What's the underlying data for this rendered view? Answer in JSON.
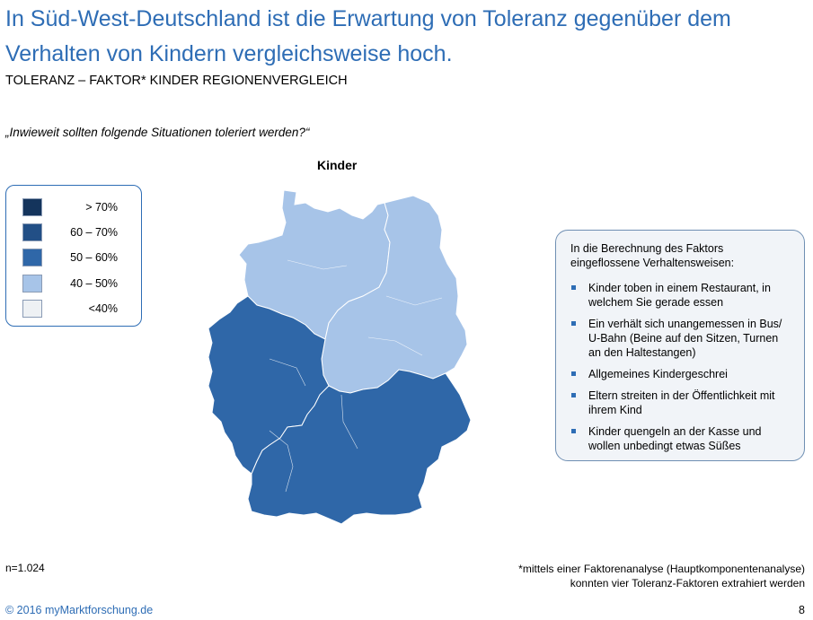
{
  "header": {
    "title": "In Süd-West-Deutschland ist die Erwartung von Toleranz gegenüber dem Verhalten von Kindern vergleichsweise hoch.",
    "subtitle": "TOLERANZ – FAKTOR* KINDER REGIONENVERGLEICH"
  },
  "question": "„Inwieweit sollten folgende Situationen toleriert werden?“",
  "map": {
    "title": "Kinder",
    "regions": [
      {
        "id": "north",
        "class": "40 – 50%",
        "color": "#a7c4e8"
      },
      {
        "id": "east",
        "class": "40 – 50%",
        "color": "#a7c4e8"
      },
      {
        "id": "west",
        "class": "50 – 60%",
        "color": "#2f67a8"
      },
      {
        "id": "south",
        "class": "50 – 60%",
        "color": "#2f67a8"
      }
    ]
  },
  "legend": {
    "items": [
      {
        "label": "> 70%",
        "color": "#14345c"
      },
      {
        "label": "60 – 70%",
        "color": "#224f86"
      },
      {
        "label": "50 – 60%",
        "color": "#2f67a8"
      },
      {
        "label": "40 – 50%",
        "color": "#a7c4e8"
      },
      {
        "label": "<40%",
        "color": "#eef1f4"
      }
    ]
  },
  "info_box": {
    "intro": "In die Berechnung des Faktors eingeflossene Verhaltensweisen:",
    "items": [
      "Kinder toben in einem Restaurant, in welchem Sie gerade essen",
      "Ein verhält sich unangemessen in Bus/ U-Bahn (Beine auf den Sitzen, Turnen an den Haltestangen)",
      "Allgemeines Kindergeschrei",
      "Eltern streiten in der Öffentlichkeit mit ihrem Kind",
      "Kinder quengeln an der Kasse und wollen unbedingt etwas Süßes"
    ]
  },
  "footer": {
    "sample": "n=1.024",
    "footnote": "*mittels einer Faktorenanalyse (Hauptkomponentenanalyse) konnten vier Toleranz-Faktoren extrahiert werden",
    "copyright": "© 2016 myMarktforschung.de",
    "page": "8"
  }
}
